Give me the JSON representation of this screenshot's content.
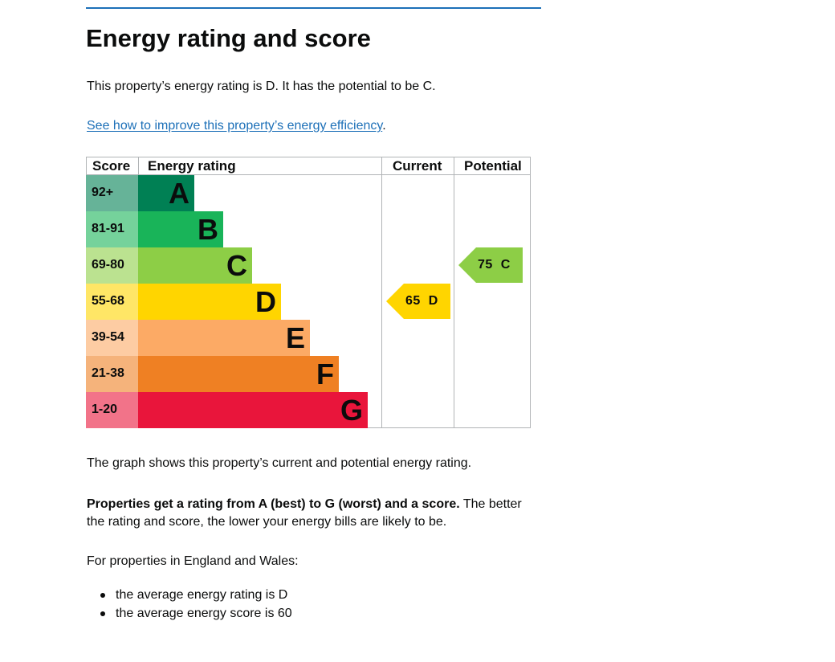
{
  "page": {
    "title": "Energy rating and score",
    "intro": "This property’s energy rating is D. It has the potential to be C.",
    "improve_link": "See how to improve this property’s energy efficiency",
    "improve_suffix": ".",
    "graph_caption": "The graph shows this property’s current and potential energy rating.",
    "rating_explainer_bold": "Properties get a rating from A (best) to G (worst) and a score.",
    "rating_explainer_rest": " The better the rating and score, the lower your energy bills are likely to be.",
    "england_wales": "For properties in England and Wales:",
    "averages": [
      "the average energy rating is D",
      "the average energy score is 60"
    ]
  },
  "epc": {
    "headers": {
      "score": "Score",
      "rating": "Energy rating",
      "current": "Current",
      "potential": "Potential"
    },
    "bands": [
      {
        "letter": "A",
        "score": "92+",
        "bar": "#008054",
        "cell": "#66b398",
        "text": "#0b0c0c"
      },
      {
        "letter": "B",
        "score": "81-91",
        "bar": "#19b459",
        "cell": "#75d29b",
        "text": "#0b0c0c"
      },
      {
        "letter": "C",
        "score": "69-80",
        "bar": "#8dce46",
        "cell": "#bbe290",
        "text": "#0b0c0c"
      },
      {
        "letter": "D",
        "score": "55-68",
        "bar": "#ffd500",
        "cell": "#ffe666",
        "text": "#0b0c0c"
      },
      {
        "letter": "E",
        "score": "39-54",
        "bar": "#fcaa65",
        "cell": "#fdcca3",
        "text": "#0b0c0c"
      },
      {
        "letter": "F",
        "score": "21-38",
        "bar": "#ef8023",
        "cell": "#f5b37b",
        "text": "#0b0c0c"
      },
      {
        "letter": "G",
        "score": "1-20",
        "bar": "#e9153b",
        "cell": "#f27389",
        "text": "#0b0c0c"
      }
    ],
    "current": {
      "score": "65",
      "letter": "D",
      "color": "#ffd500"
    },
    "potential": {
      "score": "75",
      "letter": "C",
      "color": "#8dce46"
    }
  }
}
